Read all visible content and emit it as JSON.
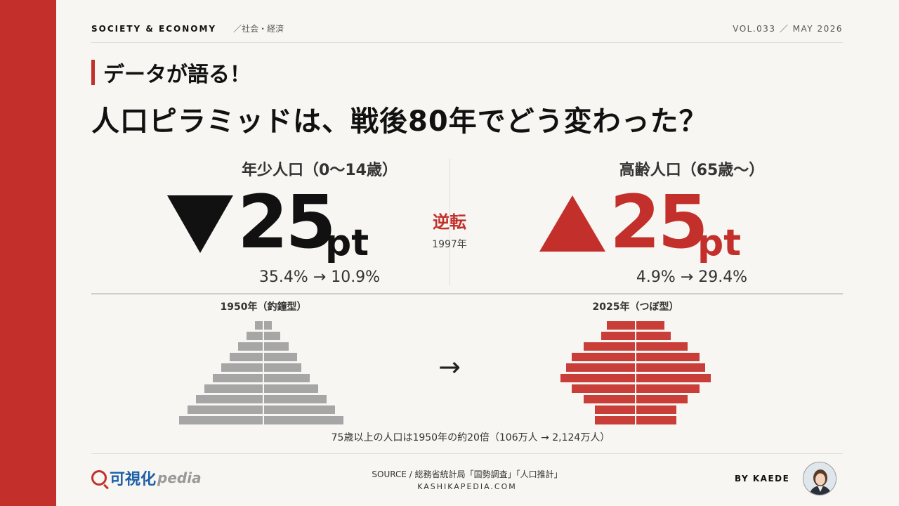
{
  "topbar": {
    "category": "SOCIETY & ECONOMY",
    "subcategory": "／社会・経済",
    "issue": "VOL.033 ／ MAY 2026"
  },
  "kicker": "データが語る！",
  "title": "人口ピラミッドは、戦後80年でどう変わった？",
  "stats": {
    "youth": {
      "heading": "年少人口（0〜14歳）",
      "change": "25",
      "unit": "pt",
      "detail": "35.4% → 10.9%"
    },
    "elderly": {
      "heading": "高齢人口（65歳〜）",
      "change": "25",
      "unit": "pt",
      "detail": "4.9% → 29.4%"
    }
  },
  "reversal": {
    "label": "逆転",
    "year": "1997年"
  },
  "pyramids": {
    "arrow": "→",
    "left": {
      "label": "1950年（釣鐘型）",
      "color": "#a6a6a6",
      "male": [
        1,
        2,
        3,
        4,
        5,
        6,
        7,
        8,
        9,
        10
      ],
      "female": [
        1,
        2,
        3,
        4,
        4.5,
        5.5,
        6.5,
        7.5,
        8.5,
        9.5
      ]
    },
    "right": {
      "label": "2025年（つぼ型）",
      "color": "#c93e38",
      "male": [
        2.5,
        3,
        4.5,
        5.5,
        6,
        6.5,
        5.5,
        4.5,
        3.5,
        3.5
      ],
      "female": [
        2.5,
        3,
        4.5,
        5.5,
        6,
        6.5,
        5.5,
        4.5,
        3.5,
        3.5
      ]
    }
  },
  "note": "75歳以上の人口は1950年の約20倍（106万人 → 2,124万人）",
  "footer": {
    "logo_main": "可視化",
    "logo_sub": "pedia",
    "source": "SOURCE / 総務省統計局「国勢調査」「人口推計」",
    "site": "KASHIKAPEDIA.COM",
    "byline": "BY KAEDE"
  }
}
